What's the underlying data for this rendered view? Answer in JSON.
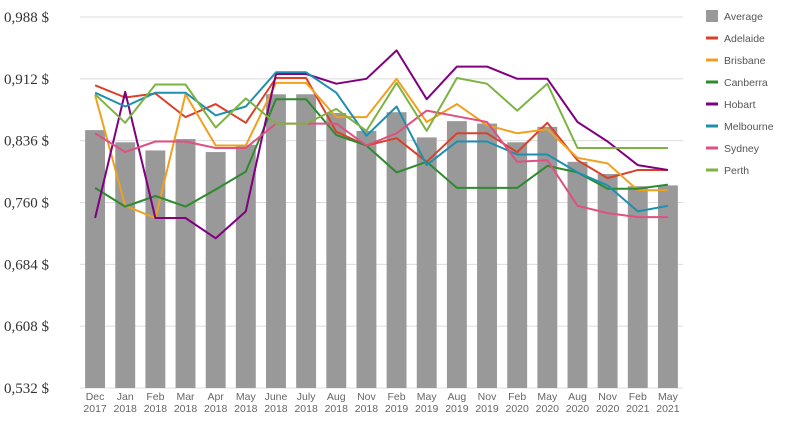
{
  "chart_data": {
    "type": "bar+line",
    "ylim": [
      0.532,
      0.988
    ],
    "y_ticks": [
      "0,532 $",
      "0,608 $",
      "0,684 $",
      "0,760 $",
      "0,836 $",
      "0,912 $",
      "0,988 $"
    ],
    "y_tick_values": [
      0.532,
      0.608,
      0.684,
      0.76,
      0.836,
      0.912,
      0.988
    ],
    "grid": true,
    "legend_position": "right",
    "categories": [
      [
        "Dec",
        "2017"
      ],
      [
        "Jan",
        "2018"
      ],
      [
        "Feb",
        "2018"
      ],
      [
        "Mar",
        "2018"
      ],
      [
        "Apr",
        "2018"
      ],
      [
        "May",
        "2018"
      ],
      [
        "June",
        "2018"
      ],
      [
        "July",
        "2018"
      ],
      [
        "Aug",
        "2018"
      ],
      [
        "Nov",
        "2018"
      ],
      [
        "Feb",
        "2019"
      ],
      [
        "May",
        "2019"
      ],
      [
        "Aug",
        "2019"
      ],
      [
        "Nov",
        "2019"
      ],
      [
        "Feb",
        "2020"
      ],
      [
        "May",
        "2020"
      ],
      [
        "Aug",
        "2020"
      ],
      [
        "Nov",
        "2020"
      ],
      [
        "Feb",
        "2021"
      ],
      [
        "May",
        "2021"
      ]
    ],
    "bars": {
      "name": "Average",
      "color": "#999999",
      "values": [
        0.849,
        0.834,
        0.824,
        0.838,
        0.822,
        0.831,
        0.893,
        0.893,
        0.87,
        0.848,
        0.871,
        0.84,
        0.86,
        0.857,
        0.834,
        0.853,
        0.81,
        0.795,
        0.78,
        0.781
      ]
    },
    "series": [
      {
        "name": "Adelaide",
        "color": "#d9412a",
        "values": [
          0.904,
          0.889,
          0.894,
          0.865,
          0.881,
          0.858,
          0.913,
          0.913,
          0.847,
          0.83,
          0.839,
          0.81,
          0.845,
          0.845,
          0.822,
          0.858,
          0.812,
          0.79,
          0.8,
          0.8
        ]
      },
      {
        "name": "Brisbane",
        "color": "#f0a020",
        "values": [
          0.892,
          0.756,
          0.741,
          0.893,
          0.83,
          0.83,
          0.907,
          0.907,
          0.865,
          0.865,
          0.912,
          0.859,
          0.881,
          0.855,
          0.845,
          0.85,
          0.815,
          0.808,
          0.775,
          0.775
        ]
      },
      {
        "name": "Canberra",
        "color": "#2e8b2e",
        "values": [
          0.778,
          0.755,
          0.768,
          0.755,
          0.776,
          0.798,
          0.887,
          0.887,
          0.843,
          0.83,
          0.797,
          0.81,
          0.778,
          0.778,
          0.778,
          0.805,
          0.797,
          0.777,
          0.777,
          0.782
        ]
      },
      {
        "name": "Hobart",
        "color": "#800080",
        "values": [
          0.741,
          0.896,
          0.741,
          0.741,
          0.716,
          0.749,
          0.918,
          0.918,
          0.906,
          0.912,
          0.947,
          0.887,
          0.927,
          0.927,
          0.912,
          0.912,
          0.859,
          0.835,
          0.806,
          0.8
        ]
      },
      {
        "name": "Melbourne",
        "color": "#1f8fb0",
        "values": [
          0.895,
          0.878,
          0.895,
          0.895,
          0.867,
          0.878,
          0.92,
          0.92,
          0.895,
          0.842,
          0.878,
          0.806,
          0.835,
          0.835,
          0.819,
          0.819,
          0.797,
          0.781,
          0.749,
          0.756
        ]
      },
      {
        "name": "Sydney",
        "color": "#e05080",
        "values": [
          0.845,
          0.822,
          0.835,
          0.835,
          0.827,
          0.827,
          0.857,
          0.857,
          0.857,
          0.83,
          0.845,
          0.873,
          0.866,
          0.859,
          0.81,
          0.812,
          0.756,
          0.747,
          0.742,
          0.742
        ]
      },
      {
        "name": "Perth",
        "color": "#7cb342",
        "values": [
          0.893,
          0.858,
          0.905,
          0.905,
          0.852,
          0.888,
          0.857,
          0.857,
          0.875,
          0.848,
          0.907,
          0.848,
          0.913,
          0.906,
          0.873,
          0.906,
          0.827,
          0.827,
          0.827,
          0.827
        ]
      }
    ]
  }
}
